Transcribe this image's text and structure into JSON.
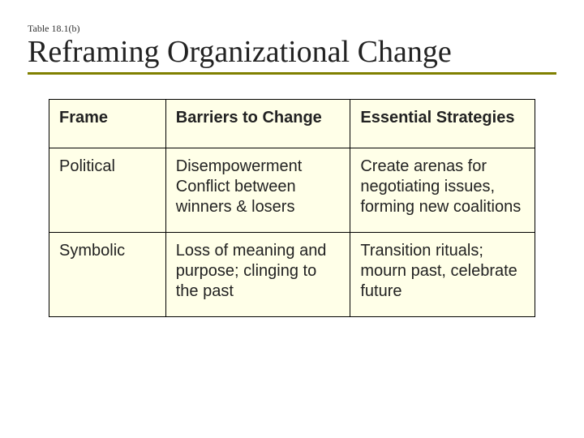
{
  "header": {
    "table_label": "Table 18.1(b)",
    "title": "Reframing Organizational Change"
  },
  "table": {
    "columns": {
      "frame": "Frame",
      "barriers": "Barriers to Change",
      "strategies": "Essential Strategies"
    },
    "rows": [
      {
        "frame": "Political",
        "barriers_a": "Disempowerment",
        "barriers_b": "Conflict between winners & losers",
        "strategies": "Create arenas for negotiating issues, forming new coalitions"
      },
      {
        "frame": "Symbolic",
        "barriers_a": "Loss of meaning and purpose; clinging to the past",
        "barriers_b": "",
        "strategies": "Transition rituals; mourn past, celebrate future"
      }
    ],
    "background_color": "#ffffe8",
    "border_color": "#000000",
    "accent_color": "#808000",
    "font_size_body": 20,
    "font_size_title": 38
  }
}
